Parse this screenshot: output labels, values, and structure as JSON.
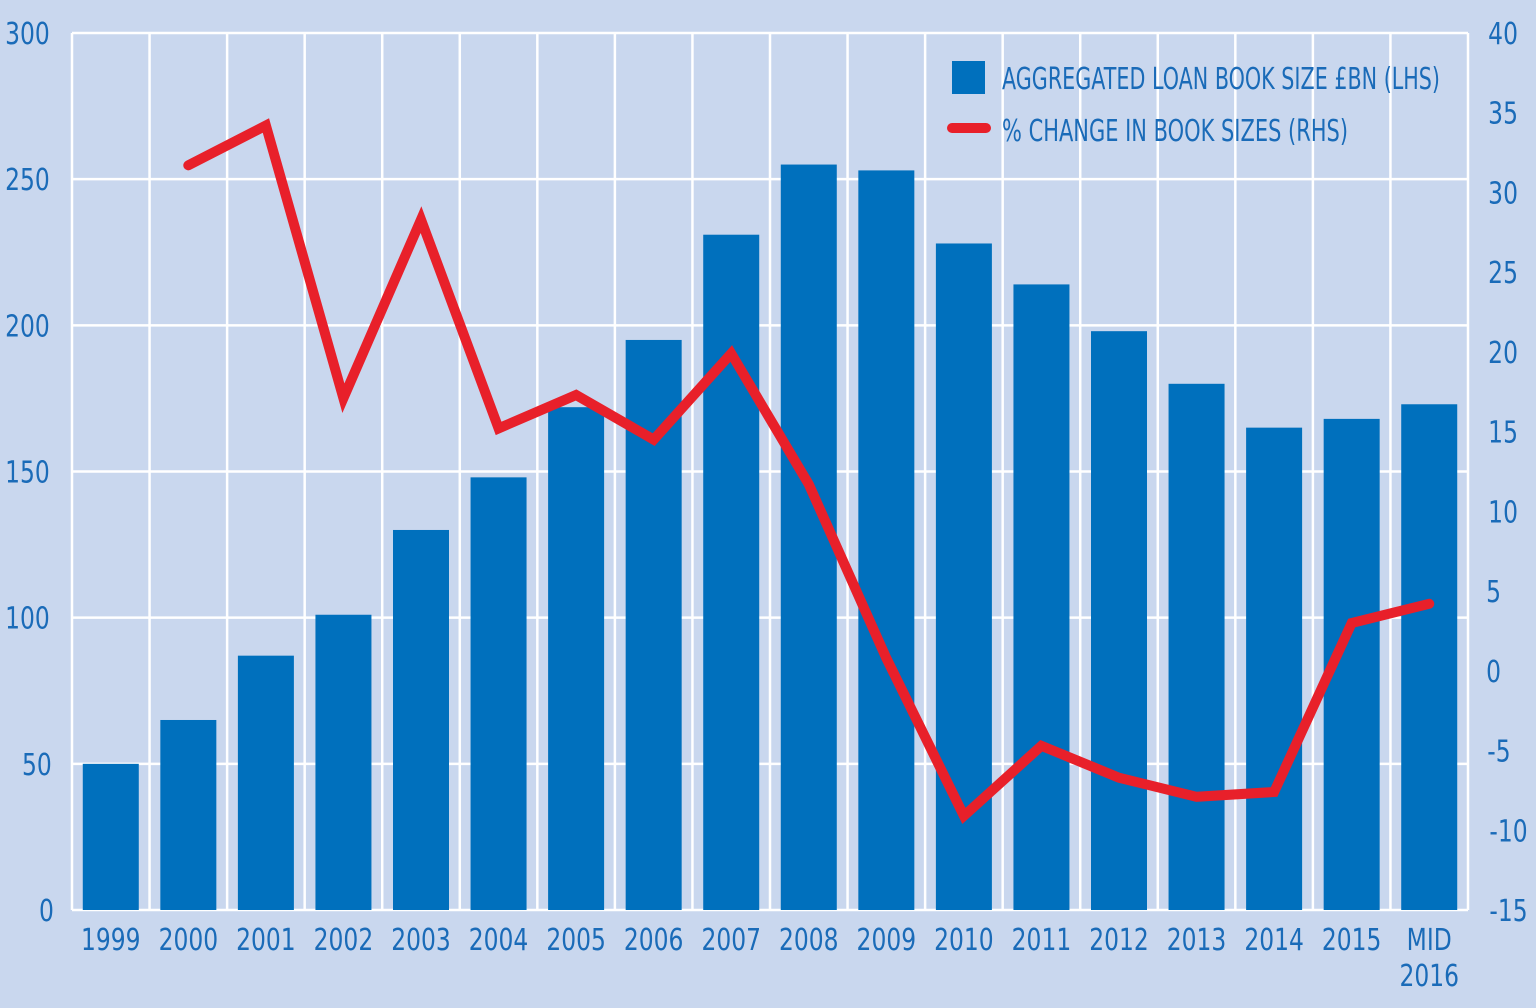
{
  "chart_data": {
    "type": "bar",
    "categories": [
      "1999",
      "2000",
      "2001",
      "2002",
      "2003",
      "2004",
      "2005",
      "2006",
      "2007",
      "2008",
      "2009",
      "2010",
      "2011",
      "2012",
      "2013",
      "2014",
      "2015",
      "MID 2016"
    ],
    "category_lines": [
      [
        "1999"
      ],
      [
        "2000"
      ],
      [
        "2001"
      ],
      [
        "2002"
      ],
      [
        "2003"
      ],
      [
        "2004"
      ],
      [
        "2005"
      ],
      [
        "2006"
      ],
      [
        "2007"
      ],
      [
        "2008"
      ],
      [
        "2009"
      ],
      [
        "2010"
      ],
      [
        "2011"
      ],
      [
        "2012"
      ],
      [
        "2013"
      ],
      [
        "2014"
      ],
      [
        "2015"
      ],
      [
        "MID",
        "2016"
      ]
    ],
    "series": [
      {
        "name": "AGGREGATED LOAN BOOK SIZE £BN (LHS)",
        "type": "bar",
        "axis": "left",
        "color": "#0070bd",
        "values": [
          50,
          65,
          87,
          101,
          130,
          148,
          172,
          195,
          231,
          255,
          253,
          228,
          214,
          198,
          180,
          165,
          168,
          173
        ]
      },
      {
        "name": "% CHANGE IN BOOK SIZES (RHS)",
        "type": "line",
        "axis": "right",
        "color": "#e8202a",
        "values": [
          null,
          31.7,
          34.2,
          17.1,
          28.3,
          15.2,
          17.3,
          14.5,
          19.9,
          11.7,
          0.8,
          -9.1,
          -4.7,
          -6.7,
          -7.9,
          -7.6,
          3.0,
          4.2
        ]
      }
    ],
    "y_left": {
      "ylim": [
        0,
        300
      ],
      "ticks": [
        0,
        50,
        100,
        150,
        200,
        250,
        300
      ]
    },
    "y_right": {
      "ylim": [
        -15,
        40
      ],
      "ticks": [
        -15,
        -10,
        -5,
        0,
        5,
        10,
        15,
        20,
        25,
        30,
        35,
        40
      ]
    },
    "grid": true,
    "legend_position": "top-right",
    "title": "",
    "xlabel": "",
    "ylabel": "",
    "colors": {
      "background": "#c9d7ee",
      "grid": "#ffffff",
      "text": "#1a6bb8"
    }
  }
}
